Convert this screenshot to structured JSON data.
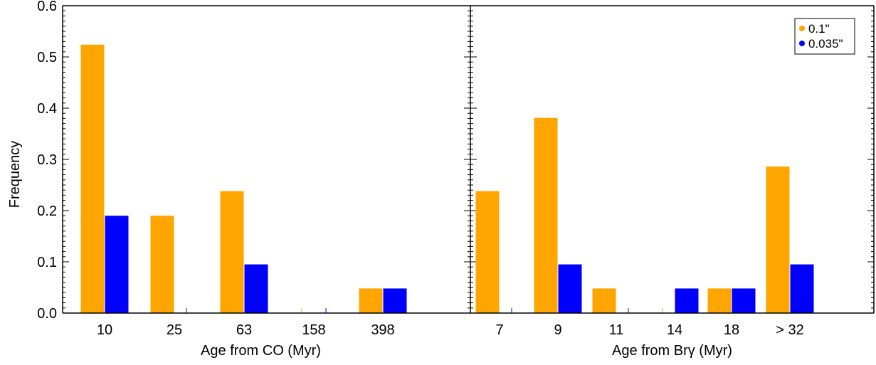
{
  "colors": {
    "orange": "#ffa500",
    "blue": "#0000ff",
    "axis": "#000000"
  },
  "ylabel": "Frequency",
  "legend": {
    "placement": "top-right",
    "items": [
      "0.1\"",
      "0.035\""
    ]
  },
  "chart_data": [
    {
      "type": "bar",
      "xlabel": "Age from CO (Myr)",
      "ylabel": "Frequency",
      "ylim": [
        0,
        0.6
      ],
      "yticks": [
        "0.0",
        "0.1",
        "0.2",
        "0.3",
        "0.4",
        "0.5",
        "0.6"
      ],
      "categories": [
        "10",
        "25",
        "63",
        "158",
        "398"
      ],
      "series": [
        {
          "name": "0.1\"",
          "values": [
            0.524,
            0.19,
            0.238,
            0.0,
            0.048
          ]
        },
        {
          "name": "0.035\"",
          "values": [
            0.19,
            0.0,
            0.095,
            0.0,
            0.048
          ]
        }
      ]
    },
    {
      "type": "bar",
      "xlabel": "Age from Brγ (Myr)",
      "ylim": [
        0,
        0.6
      ],
      "categories": [
        "7",
        "9",
        "11",
        "14",
        "18",
        "> 32"
      ],
      "series": [
        {
          "name": "0.1\"",
          "values": [
            0.238,
            0.381,
            0.048,
            0.0,
            0.048,
            0.286
          ]
        },
        {
          "name": "0.035\"",
          "values": [
            0.0,
            0.095,
            0.0,
            0.048,
            0.048,
            0.095
          ]
        }
      ]
    }
  ]
}
